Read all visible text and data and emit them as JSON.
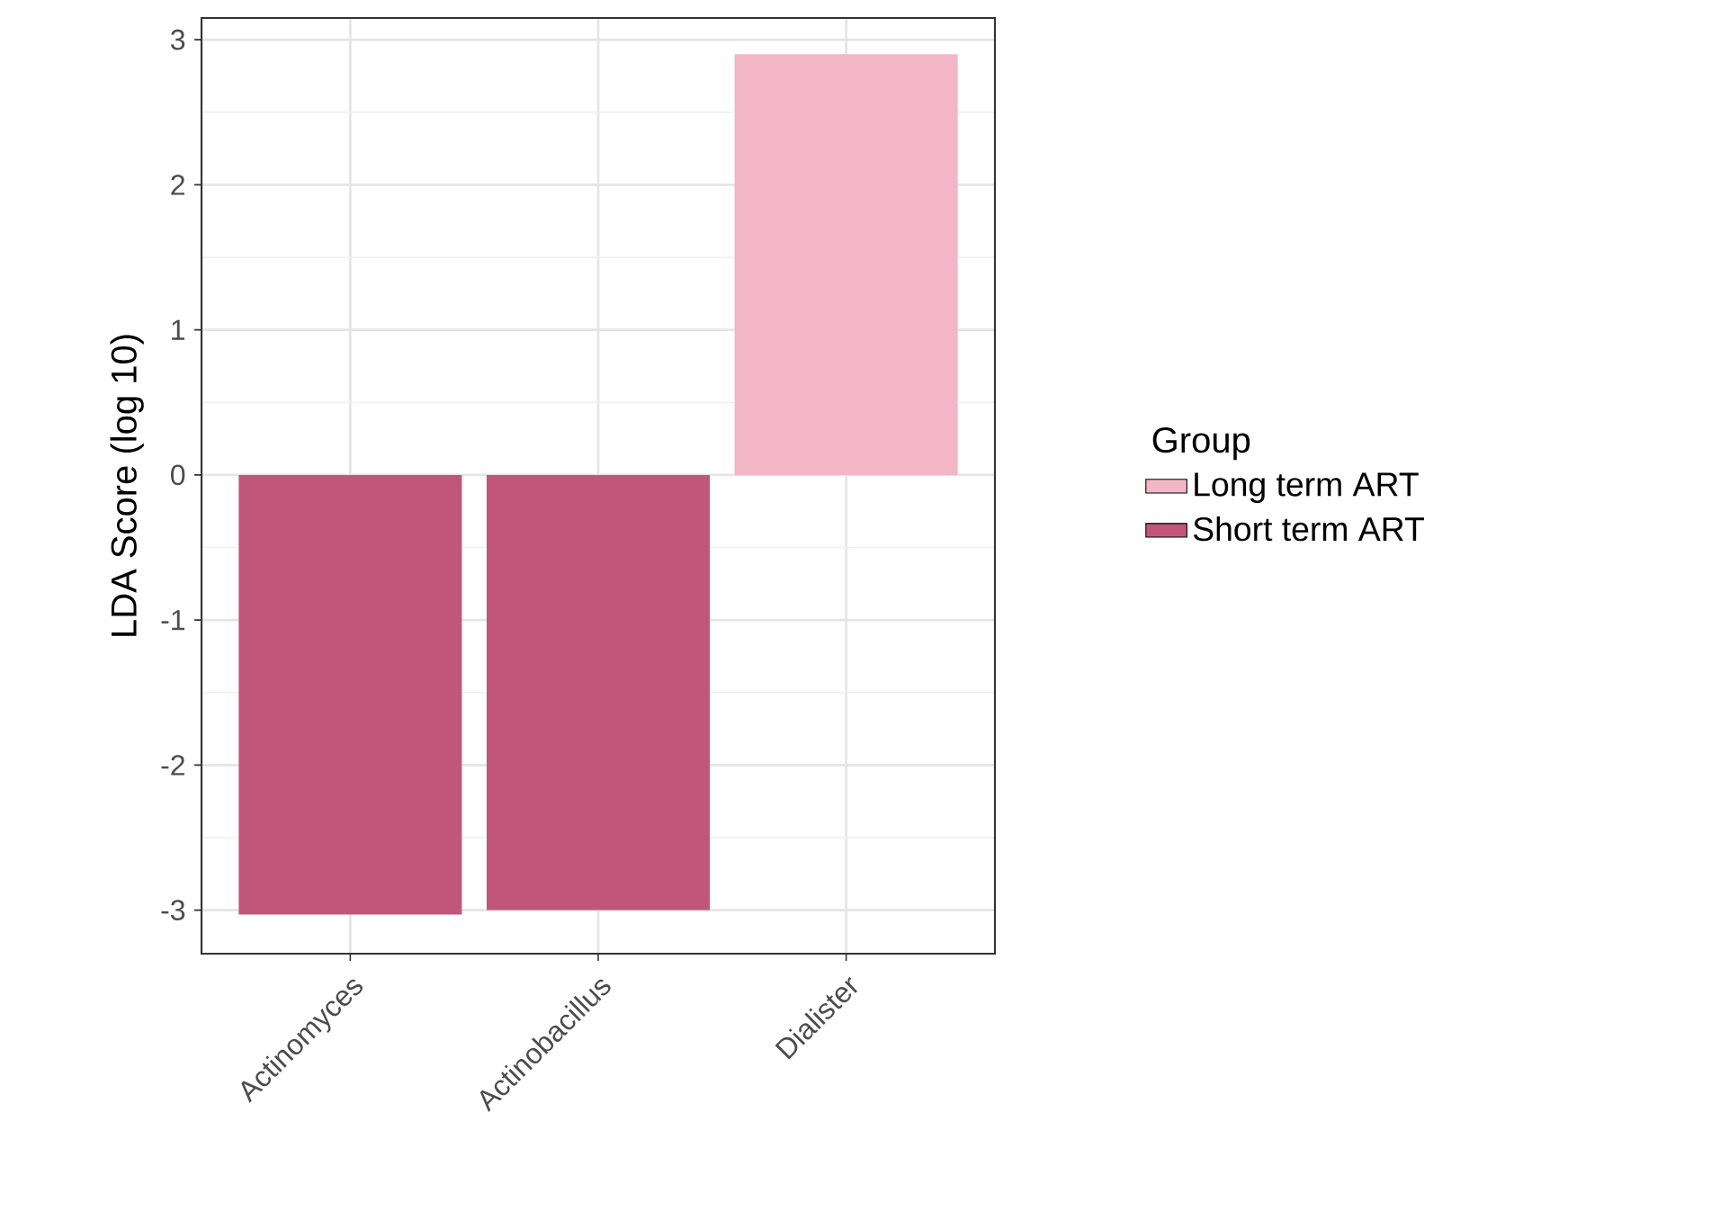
{
  "chart_data": {
    "type": "bar",
    "ylabel": "LDA Score (log 10)",
    "legend_title": "Group",
    "categories": [
      "Actinomyces",
      "Actinobacillus",
      "Dialister"
    ],
    "series": [
      {
        "name": "Long term ART",
        "color": "#f2b6c6",
        "values": [
          null,
          null,
          2.9
        ]
      },
      {
        "name": "Short term ART",
        "color": "#c0567a",
        "values": [
          -3.03,
          -3.0,
          null
        ]
      }
    ],
    "ylim": [
      -3.3,
      3.15
    ],
    "yticks": [
      -3,
      -2,
      -1,
      0,
      1,
      2,
      3
    ],
    "grid": true,
    "legend": "right"
  }
}
